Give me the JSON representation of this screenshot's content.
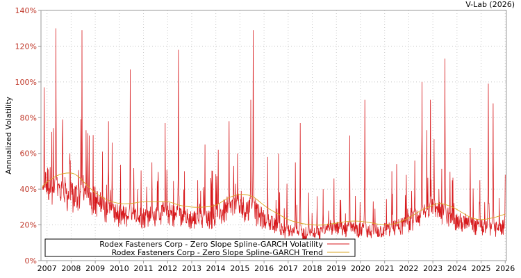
{
  "credit": "V-Lab (2026)",
  "chart_data": {
    "type": "line",
    "title": "",
    "xlabel": "",
    "ylabel": "Annualized Volatility",
    "xlim": [
      2006.75,
      2026.05
    ],
    "ylim": [
      0,
      140
    ],
    "y_ticks": [
      0,
      20,
      40,
      60,
      80,
      100,
      120,
      140
    ],
    "y_tick_labels": [
      "0%",
      "20%",
      "40%",
      "60%",
      "80%",
      "100%",
      "120%",
      "140%"
    ],
    "x_ticks": [
      2007,
      2008,
      2009,
      2010,
      2011,
      2012,
      2013,
      2014,
      2015,
      2016,
      2017,
      2018,
      2019,
      2020,
      2021,
      2022,
      2023,
      2024,
      2025,
      2026
    ],
    "x_tick_labels": [
      "2007",
      "2008",
      "2009",
      "2010",
      "2011",
      "2012",
      "2013",
      "2014",
      "2015",
      "2016",
      "2017",
      "2018",
      "2019",
      "2020",
      "2021",
      "2022",
      "2023",
      "2024",
      "2025",
      "2026"
    ],
    "grid": true,
    "legend_position": "bottom-left",
    "series": [
      {
        "name": "Rodex Fasteners Corp - Zero Slope Spline-GARCH Volatility",
        "color": "#d7191c",
        "style": "noisy volatility",
        "baseline": [
          [
            2006.8,
            32
          ],
          [
            2007.0,
            38
          ],
          [
            2007.5,
            34
          ],
          [
            2008.0,
            31
          ],
          [
            2008.5,
            32
          ],
          [
            2009.0,
            29
          ],
          [
            2009.5,
            24
          ],
          [
            2010.0,
            22
          ],
          [
            2010.5,
            21
          ],
          [
            2011.0,
            21
          ],
          [
            2011.5,
            22
          ],
          [
            2012.0,
            23
          ],
          [
            2012.5,
            21
          ],
          [
            2013.0,
            20
          ],
          [
            2013.5,
            20
          ],
          [
            2014.0,
            21
          ],
          [
            2014.5,
            25
          ],
          [
            2015.0,
            26
          ],
          [
            2015.5,
            24
          ],
          [
            2016.0,
            20
          ],
          [
            2016.5,
            16
          ],
          [
            2017.0,
            14
          ],
          [
            2017.5,
            13
          ],
          [
            2018.0,
            13
          ],
          [
            2018.5,
            14
          ],
          [
            2019.0,
            15
          ],
          [
            2019.5,
            15
          ],
          [
            2020.0,
            15
          ],
          [
            2020.5,
            14
          ],
          [
            2021.0,
            15
          ],
          [
            2021.5,
            16
          ],
          [
            2022.0,
            18
          ],
          [
            2022.5,
            22
          ],
          [
            2023.0,
            24
          ],
          [
            2023.5,
            22
          ],
          [
            2024.0,
            19
          ],
          [
            2024.5,
            17
          ],
          [
            2025.0,
            16
          ],
          [
            2025.5,
            15
          ],
          [
            2026.0,
            16
          ]
        ],
        "spikes": [
          [
            2006.88,
            97
          ],
          [
            2007.2,
            72
          ],
          [
            2007.37,
            130
          ],
          [
            2007.65,
            79
          ],
          [
            2007.95,
            60
          ],
          [
            2008.45,
            129
          ],
          [
            2008.62,
            73
          ],
          [
            2008.75,
            70
          ],
          [
            2009.3,
            61
          ],
          [
            2009.55,
            78
          ],
          [
            2009.7,
            66
          ],
          [
            2010.45,
            107
          ],
          [
            2010.75,
            40
          ],
          [
            2011.35,
            55
          ],
          [
            2011.6,
            44
          ],
          [
            2011.9,
            77
          ],
          [
            2012.45,
            118
          ],
          [
            2012.7,
            50
          ],
          [
            2013.25,
            45
          ],
          [
            2013.55,
            65
          ],
          [
            2014.1,
            62
          ],
          [
            2014.55,
            78
          ],
          [
            2014.9,
            60
          ],
          [
            2015.55,
            129
          ],
          [
            2015.45,
            90
          ],
          [
            2016.15,
            58
          ],
          [
            2016.6,
            60
          ],
          [
            2016.95,
            43
          ],
          [
            2017.3,
            55
          ],
          [
            2017.5,
            77
          ],
          [
            2017.85,
            38
          ],
          [
            2018.2,
            36
          ],
          [
            2018.45,
            40
          ],
          [
            2018.9,
            46
          ],
          [
            2019.15,
            34
          ],
          [
            2019.55,
            70
          ],
          [
            2020.18,
            90
          ],
          [
            2020.6,
            29
          ],
          [
            2021.3,
            50
          ],
          [
            2021.5,
            54
          ],
          [
            2021.9,
            48
          ],
          [
            2022.25,
            56
          ],
          [
            2022.55,
            100
          ],
          [
            2022.75,
            73
          ],
          [
            2022.9,
            90
          ],
          [
            2023.05,
            68
          ],
          [
            2023.25,
            40
          ],
          [
            2023.5,
            113
          ],
          [
            2023.8,
            31
          ],
          [
            2024.55,
            63
          ],
          [
            2024.95,
            45
          ],
          [
            2025.3,
            99
          ],
          [
            2025.5,
            88
          ],
          [
            2025.75,
            35
          ],
          [
            2026.0,
            48
          ]
        ]
      },
      {
        "name": "Rodex Fasteners Corp - Zero Slope Spline-GARCH Trend",
        "color": "#d9a520",
        "points": [
          [
            2006.8,
            41
          ],
          [
            2007.0,
            44
          ],
          [
            2007.5,
            48
          ],
          [
            2008.0,
            49
          ],
          [
            2008.3,
            47
          ],
          [
            2008.6,
            43
          ],
          [
            2009.0,
            38
          ],
          [
            2009.5,
            34
          ],
          [
            2010.0,
            32
          ],
          [
            2010.5,
            32
          ],
          [
            2011.0,
            33
          ],
          [
            2011.5,
            33
          ],
          [
            2012.0,
            33
          ],
          [
            2012.5,
            31
          ],
          [
            2013.0,
            30
          ],
          [
            2013.5,
            30
          ],
          [
            2014.0,
            31
          ],
          [
            2014.5,
            35
          ],
          [
            2015.0,
            37
          ],
          [
            2015.5,
            36
          ],
          [
            2015.9,
            32
          ],
          [
            2016.2,
            29
          ],
          [
            2016.6,
            26
          ],
          [
            2017.0,
            23
          ],
          [
            2017.5,
            21
          ],
          [
            2018.0,
            20
          ],
          [
            2018.5,
            20
          ],
          [
            2019.0,
            21
          ],
          [
            2019.5,
            22
          ],
          [
            2020.0,
            22
          ],
          [
            2020.5,
            21
          ],
          [
            2021.0,
            20
          ],
          [
            2021.5,
            21
          ],
          [
            2022.0,
            24
          ],
          [
            2022.5,
            28
          ],
          [
            2023.0,
            31
          ],
          [
            2023.3,
            32
          ],
          [
            2023.8,
            30
          ],
          [
            2024.2,
            27
          ],
          [
            2024.6,
            24
          ],
          [
            2025.0,
            23
          ],
          [
            2025.5,
            24
          ],
          [
            2026.0,
            26
          ]
        ]
      }
    ]
  }
}
